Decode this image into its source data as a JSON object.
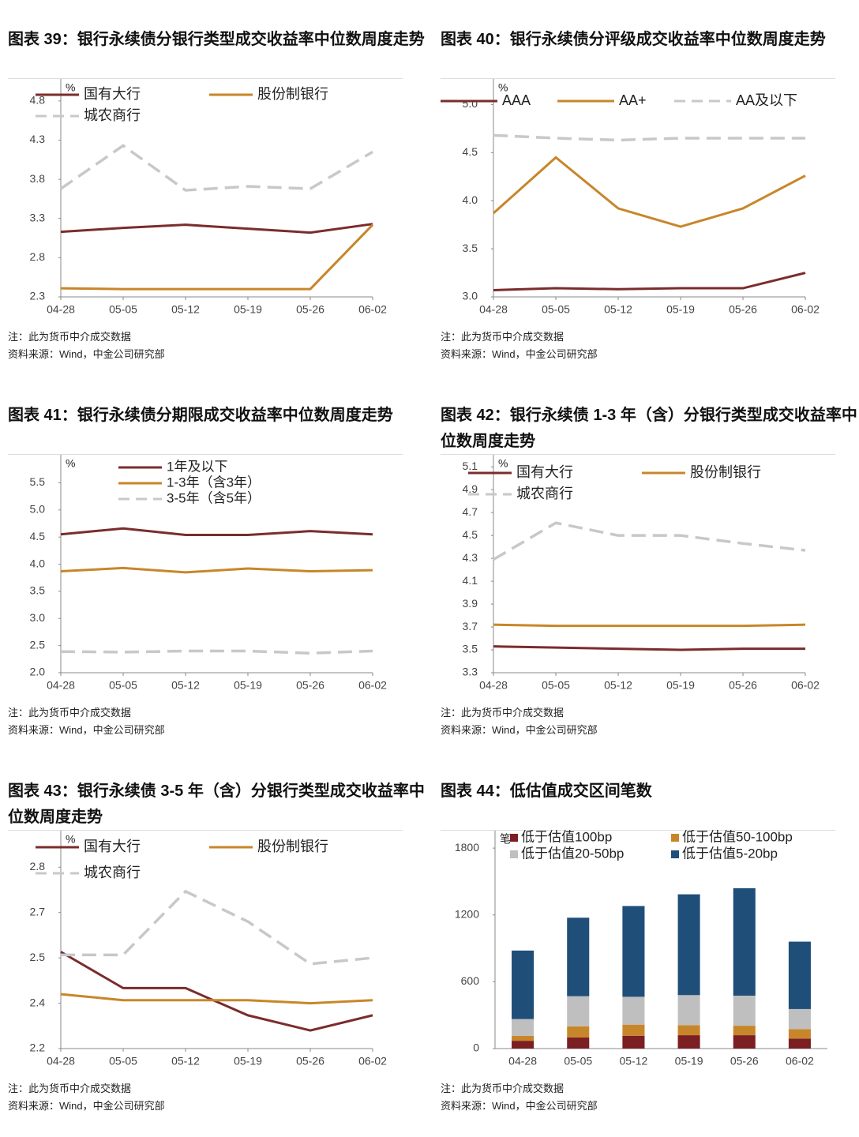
{
  "chart_data": [
    {
      "type": "line",
      "title": "图表 39：银行永续债分银行类型成交收益率中位数周度走势",
      "note": "注：此为货币中介成交数据",
      "source": "资料来源：Wind，中金公司研究部",
      "y_unit": "%",
      "categories": [
        "04-28",
        "05-05",
        "05-12",
        "05-19",
        "05-26",
        "06-02"
      ],
      "series": [
        {
          "name": "国有大行",
          "color": "#7b2c2c",
          "dashed": false,
          "values": [
            3.13,
            3.18,
            3.22,
            3.17,
            3.12,
            3.23
          ]
        },
        {
          "name": "股份制银行",
          "color": "#c8862a",
          "dashed": false,
          "values": [
            2.41,
            2.4,
            2.4,
            2.4,
            2.4,
            3.22
          ]
        },
        {
          "name": "城农商行",
          "color": "#c8c8c8",
          "dashed": true,
          "values": [
            3.68,
            4.23,
            3.66,
            3.71,
            3.68,
            4.15
          ]
        }
      ],
      "ylim": [
        2.3,
        5.0
      ],
      "yticks": [
        2.3,
        2.8,
        3.3,
        3.8,
        4.3,
        4.8
      ],
      "grid": false
    },
    {
      "type": "line",
      "title": "图表 40：银行永续债分评级成交收益率中位数周度走势",
      "note": "注：此为货币中介成交数据",
      "source": "资料来源：Wind，中金公司研究部",
      "y_unit": "%",
      "categories": [
        "04-28",
        "05-05",
        "05-12",
        "05-19",
        "05-26",
        "06-02"
      ],
      "series": [
        {
          "name": "AAA",
          "color": "#7b2c2c",
          "dashed": false,
          "values": [
            3.07,
            3.09,
            3.08,
            3.09,
            3.09,
            3.25
          ]
        },
        {
          "name": "AA+",
          "color": "#c8862a",
          "dashed": false,
          "values": [
            3.87,
            4.45,
            3.92,
            3.73,
            3.92,
            4.26
          ]
        },
        {
          "name": "AA及以下",
          "color": "#c8c8c8",
          "dashed": true,
          "values": [
            4.68,
            4.65,
            4.63,
            4.65,
            4.65,
            4.65
          ]
        }
      ],
      "ylim": [
        3.0,
        5.2
      ],
      "yticks": [
        {
          "value": 3,
          "label": "3.0"
        },
        3.5,
        {
          "value": 4,
          "label": "4.0"
        },
        4.5,
        {
          "value": 5,
          "label": "5.0"
        }
      ],
      "grid": false
    },
    {
      "type": "line",
      "title": "图表 41：银行永续债分期限成交收益率中位数周度走势",
      "note": "注：此为货币中介成交数据",
      "source": "资料来源：Wind，中金公司研究部",
      "y_unit": "%",
      "categories": [
        "04-28",
        "05-05",
        "05-12",
        "05-19",
        "05-26",
        "06-02"
      ],
      "series": [
        {
          "name": "1年及以下",
          "color": "#7b2c2c",
          "dashed": false,
          "values": [
            4.55,
            4.66,
            4.54,
            4.54,
            4.61,
            4.55
          ]
        },
        {
          "name": "1-3年（含3年）",
          "color": "#c8862a",
          "dashed": false,
          "values": [
            3.87,
            3.93,
            3.85,
            3.92,
            3.87,
            3.89
          ]
        },
        {
          "name": "3-5年（含5年）",
          "color": "#c8c8c8",
          "dashed": true,
          "values": [
            2.39,
            2.38,
            2.4,
            2.4,
            2.36,
            2.4
          ]
        }
      ],
      "ylim": [
        2.0,
        5.9
      ],
      "yticks": [
        {
          "value": 2,
          "label": "2.0"
        },
        2.5,
        {
          "value": 3,
          "label": "3.0"
        },
        3.5,
        {
          "value": 4,
          "label": "4.0"
        },
        4.5,
        {
          "value": 5,
          "label": "5.0"
        },
        5.5
      ],
      "grid": false
    },
    {
      "type": "line",
      "title": "图表 42：银行永续债 1-3 年（含）分银行类型成交收益率中位数周度走势",
      "note": "注：此为货币中介成交数据",
      "source": "资料来源：Wind，中金公司研究部",
      "y_unit": "%",
      "categories": [
        "04-28",
        "05-05",
        "05-12",
        "05-19",
        "05-26",
        "06-02"
      ],
      "series": [
        {
          "name": "国有大行",
          "color": "#7b2c2c",
          "dashed": false,
          "values": [
            3.53,
            3.52,
            3.51,
            3.5,
            3.51,
            3.51
          ]
        },
        {
          "name": "股份制银行",
          "color": "#c8862a",
          "dashed": false,
          "values": [
            3.72,
            3.71,
            3.71,
            3.71,
            3.71,
            3.72
          ]
        },
        {
          "name": "城农商行",
          "color": "#c8c8c8",
          "dashed": true,
          "values": [
            4.29,
            4.61,
            4.5,
            4.5,
            4.43,
            4.37
          ]
        }
      ],
      "ylim": [
        3.3,
        5.15
      ],
      "yticks": [
        3.3,
        3.5,
        3.7,
        3.9,
        4.1,
        4.3,
        4.5,
        4.7,
        4.9,
        5.1
      ],
      "grid": false
    },
    {
      "type": "line",
      "title": "图表 43：银行永续债 3-5 年（含）分银行类型成交收益率中位数周度走势",
      "note": "注：此为货币中介成交数据",
      "source": "资料来源：Wind，中金公司研究部",
      "y_unit": "%",
      "categories": [
        "04-28",
        "05-05",
        "05-12",
        "05-19",
        "05-26",
        "06-02"
      ],
      "series": [
        {
          "name": "国有大行",
          "color": "#7b2c2c",
          "dashed": false,
          "values": [
            2.52,
            2.4,
            2.4,
            2.31,
            2.26,
            2.31
          ]
        },
        {
          "name": "股份制银行",
          "color": "#c8862a",
          "dashed": false,
          "values": [
            2.38,
            2.36,
            2.36,
            2.36,
            2.35,
            2.36
          ]
        },
        {
          "name": "城农商行",
          "color": "#c8c8c8",
          "dashed": true,
          "values": [
            2.51,
            2.51,
            2.72,
            2.62,
            2.48,
            2.5
          ]
        }
      ],
      "ylim": [
        2.2,
        2.9
      ],
      "yticks": [
        2.2,
        {
          "value": 2.35,
          "label": "2.4"
        },
        2.5,
        {
          "value": 2.65,
          "label": "2.7"
        },
        2.8
      ],
      "grid": false
    },
    {
      "type": "bar",
      "stacked": true,
      "title": "图表 44：低估值成交区间笔数",
      "note": "注：此为货币中介成交数据",
      "source": "资料来源：Wind，中金公司研究部",
      "y_unit": "笔",
      "categories": [
        "04-28",
        "05-05",
        "05-12",
        "05-19",
        "05-26",
        "06-02"
      ],
      "series": [
        {
          "name": "低于估值100bp",
          "color": "#7b1f22",
          "values": [
            70,
            100,
            115,
            120,
            120,
            90
          ]
        },
        {
          "name": "低于估值50-100bp",
          "color": "#c8862a",
          "values": [
            45,
            100,
            100,
            90,
            85,
            85
          ]
        },
        {
          "name": "低于估值20-50bp",
          "color": "#bfbfbf",
          "values": [
            150,
            270,
            250,
            270,
            270,
            180
          ]
        },
        {
          "name": "低于估值5-20bp",
          "color": "#1f4e79",
          "values": [
            615,
            705,
            815,
            905,
            965,
            605
          ]
        }
      ],
      "ylim": [
        0,
        1900
      ],
      "yticks": [
        0,
        600,
        1200,
        1800
      ],
      "grid": false
    }
  ]
}
